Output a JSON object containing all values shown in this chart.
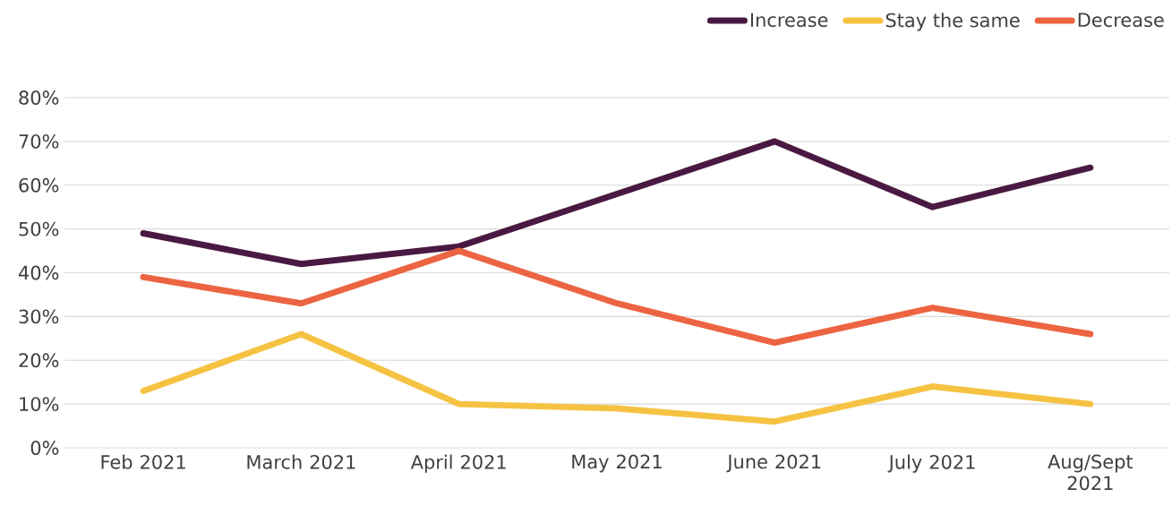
{
  "chart_data": {
    "type": "line",
    "categories": [
      "Feb 2021",
      "March 2021",
      "April 2021",
      "May 2021",
      "June 2021",
      "July 2021",
      "Aug/Sept 2021"
    ],
    "series": [
      {
        "name": "Increase",
        "color": "#4a1942",
        "values": [
          49,
          42,
          46,
          58,
          70,
          55,
          64
        ]
      },
      {
        "name": "Stay the same",
        "color": "#f5c242",
        "values": [
          13,
          26,
          10,
          9,
          6,
          14,
          10
        ]
      },
      {
        "name": "Decrease",
        "color": "#ec6441",
        "values": [
          39,
          33,
          45,
          33,
          24,
          32,
          26
        ]
      }
    ],
    "ylim": [
      0,
      80
    ],
    "yticks": [
      {
        "value": 0,
        "label": "0%"
      },
      {
        "value": 10,
        "label": "10%"
      },
      {
        "value": 20,
        "label": "20%"
      },
      {
        "value": 30,
        "label": "30%"
      },
      {
        "value": 40,
        "label": "40%"
      },
      {
        "value": 50,
        "label": "50%"
      },
      {
        "value": 60,
        "label": "60%"
      },
      {
        "value": 70,
        "label": "70%"
      },
      {
        "value": 80,
        "label": "80%"
      }
    ],
    "grid": "y",
    "legend": "top right",
    "marker": "none",
    "line_style": "solid"
  }
}
